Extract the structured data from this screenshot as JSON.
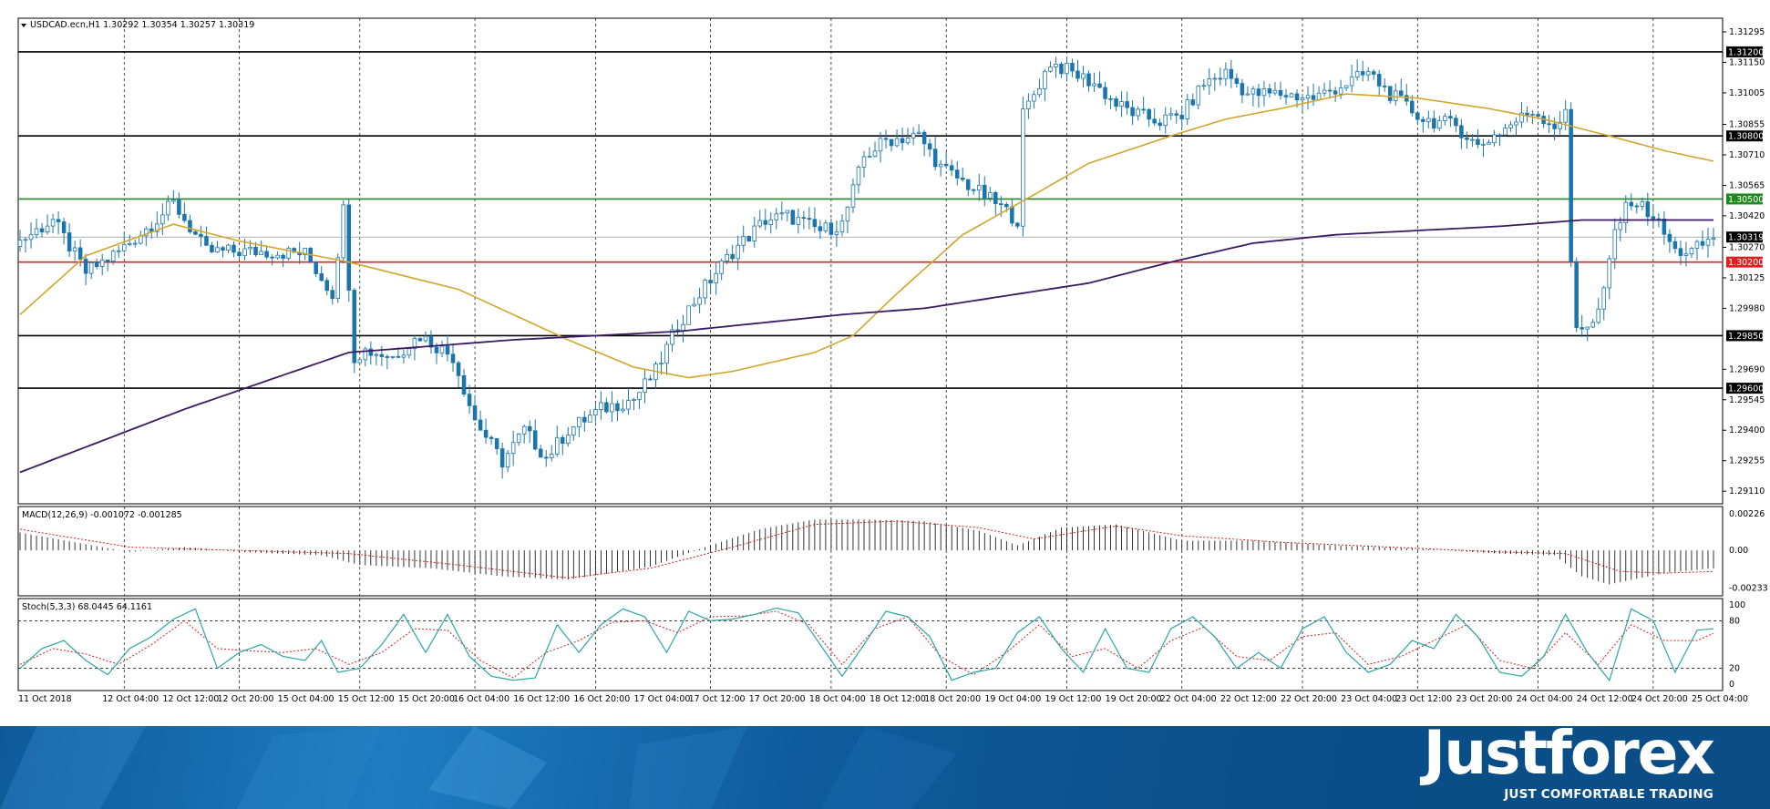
{
  "colors": {
    "up_candle": "#ffffff",
    "down_candle": "#1b75ad",
    "candle_border": "#1b75ad",
    "ma_fast": "#d4a52c",
    "ma_slow": "#3c1a63",
    "support_resistance": "#000000",
    "green_level": "#1f8a1f",
    "red_level": "#e02020",
    "bid_line": "#b0b0b0",
    "macd_hist": "#000000",
    "macd_signal": "#cc2020",
    "stoch_main": "#2ca6a4",
    "stoch_signal": "#cc2020",
    "banner_blue": "#0d5a99"
  },
  "chart_data": [
    {
      "type": "candlestick",
      "title": "USDCAD.ecn,H1  1.30292 1.30354 1.30257 1.30319",
      "ylim": [
        1.2905,
        1.3136
      ],
      "y_ticks": [
        "1.31295",
        "1.31150",
        "1.31005",
        "1.30855",
        "1.30710",
        "1.30565",
        "1.30420",
        "1.30270",
        "1.30125",
        "1.29980",
        "1.29690",
        "1.29545",
        "1.29400",
        "1.29255",
        "1.29110"
      ],
      "x_ticks": [
        "11 Oct 2018",
        "12 Oct 04:00",
        "12 Oct 12:00",
        "12 Oct 20:00",
        "15 Oct 04:00",
        "15 Oct 12:00",
        "15 Oct 20:00",
        "16 Oct 04:00",
        "16 Oct 12:00",
        "16 Oct 20:00",
        "17 Oct 04:00",
        "17 Oct 12:00",
        "17 Oct 20:00",
        "18 Oct 04:00",
        "18 Oct 12:00",
        "18 Oct 20:00",
        "19 Oct 04:00",
        "19 Oct 12:00",
        "19 Oct 20:00",
        "22 Oct 04:00",
        "22 Oct 12:00",
        "22 Oct 20:00",
        "23 Oct 04:00",
        "23 Oct 12:00",
        "23 Oct 20:00",
        "24 Oct 04:00",
        "24 Oct 12:00",
        "24 Oct 20:00",
        "25 Oct 04:00"
      ],
      "horizontal_levels": [
        {
          "label": "1.31200",
          "value": 1.312,
          "style": "black"
        },
        {
          "label": "1.30800",
          "value": 1.308,
          "style": "black"
        },
        {
          "label": "1.30500",
          "value": 1.305,
          "style": "green"
        },
        {
          "label": "1.30319",
          "value": 1.30319,
          "style": "bid"
        },
        {
          "label": "1.30200",
          "value": 1.302,
          "style": "red"
        },
        {
          "label": "1.29850",
          "value": 1.2985,
          "style": "black"
        },
        {
          "label": "1.29600",
          "value": 1.296,
          "style": "black"
        }
      ],
      "close_path": [
        [
          0,
          1.303
        ],
        [
          6,
          1.304
        ],
        [
          12,
          1.3015
        ],
        [
          18,
          1.3025
        ],
        [
          24,
          1.3038
        ],
        [
          28,
          1.3048
        ],
        [
          34,
          1.3025
        ],
        [
          44,
          1.3025
        ],
        [
          52,
          1.3024
        ],
        [
          57,
          1.3005
        ],
        [
          59,
          1.3045
        ],
        [
          61,
          1.2975
        ],
        [
          63,
          1.2978
        ],
        [
          68,
          1.2975
        ],
        [
          73,
          1.2985
        ],
        [
          79,
          1.2975
        ],
        [
          83,
          1.2945
        ],
        [
          88,
          1.2925
        ],
        [
          92,
          1.294
        ],
        [
          96,
          1.2927
        ],
        [
          100,
          1.294
        ],
        [
          106,
          1.295
        ],
        [
          112,
          1.2955
        ],
        [
          116,
          1.2968
        ],
        [
          120,
          1.299
        ],
        [
          124,
          1.3005
        ],
        [
          130,
          1.3025
        ],
        [
          136,
          1.304
        ],
        [
          140,
          1.3042
        ],
        [
          146,
          1.3035
        ],
        [
          150,
          1.3038
        ],
        [
          154,
          1.307
        ],
        [
          158,
          1.3078
        ],
        [
          164,
          1.308
        ],
        [
          168,
          1.3065
        ],
        [
          174,
          1.3055
        ],
        [
          178,
          1.3048
        ],
        [
          182,
          1.304
        ],
        [
          183,
          1.309
        ],
        [
          186,
          1.3105
        ],
        [
          188,
          1.3115
        ],
        [
          192,
          1.311
        ],
        [
          196,
          1.3105
        ],
        [
          200,
          1.3095
        ],
        [
          204,
          1.309
        ],
        [
          208,
          1.3087
        ],
        [
          212,
          1.309
        ],
        [
          216,
          1.3105
        ],
        [
          220,
          1.311
        ],
        [
          224,
          1.31
        ],
        [
          230,
          1.31
        ],
        [
          236,
          1.3098
        ],
        [
          242,
          1.3105
        ],
        [
          246,
          1.311
        ],
        [
          250,
          1.31
        ],
        [
          256,
          1.3088
        ],
        [
          262,
          1.3085
        ],
        [
          266,
          1.3075
        ],
        [
          270,
          1.3082
        ],
        [
          276,
          1.3092
        ],
        [
          280,
          1.3085
        ],
        [
          282,
          1.309
        ],
        [
          283,
          1.302
        ],
        [
          284,
          1.299
        ],
        [
          287,
          1.299
        ],
        [
          289,
          1.3005
        ],
        [
          291,
          1.3035
        ],
        [
          294,
          1.305
        ],
        [
          298,
          1.3042
        ],
        [
          302,
          1.3025
        ],
        [
          305,
          1.3025
        ],
        [
          308,
          1.303
        ],
        [
          309,
          1.3032
        ]
      ],
      "ma_fast_path": [
        [
          0,
          1.2995
        ],
        [
          12,
          1.3023
        ],
        [
          28,
          1.3038
        ],
        [
          40,
          1.303
        ],
        [
          60,
          1.302
        ],
        [
          80,
          1.3007
        ],
        [
          100,
          1.2983
        ],
        [
          112,
          1.297
        ],
        [
          122,
          1.2965
        ],
        [
          130,
          1.2968
        ],
        [
          145,
          1.2977
        ],
        [
          152,
          1.2985
        ],
        [
          160,
          1.3005
        ],
        [
          172,
          1.3033
        ],
        [
          185,
          1.3052
        ],
        [
          195,
          1.3067
        ],
        [
          210,
          1.308
        ],
        [
          220,
          1.3088
        ],
        [
          230,
          1.3093
        ],
        [
          242,
          1.31
        ],
        [
          255,
          1.3098
        ],
        [
          268,
          1.3093
        ],
        [
          278,
          1.3088
        ],
        [
          290,
          1.308
        ],
        [
          300,
          1.3073
        ],
        [
          309,
          1.3068
        ]
      ],
      "ma_slow_path": [
        [
          0,
          1.292
        ],
        [
          30,
          1.295
        ],
        [
          60,
          1.2977
        ],
        [
          90,
          1.2983
        ],
        [
          120,
          1.2987
        ],
        [
          150,
          1.2995
        ],
        [
          165,
          1.2998
        ],
        [
          180,
          1.3004
        ],
        [
          195,
          1.301
        ],
        [
          210,
          1.302
        ],
        [
          225,
          1.3029
        ],
        [
          240,
          1.3033
        ],
        [
          255,
          1.3035
        ],
        [
          270,
          1.3037
        ],
        [
          285,
          1.304
        ],
        [
          300,
          1.304
        ],
        [
          309,
          1.304
        ]
      ]
    },
    {
      "type": "bar",
      "title": "MACD(12,26,9) -0.001072 -0.001285",
      "y_ticks": [
        "0.00226",
        "0.00",
        "-0.00233"
      ],
      "ylim": [
        -0.0028,
        0.0027
      ],
      "hist_path": [
        [
          0,
          0.0011
        ],
        [
          10,
          0.0005
        ],
        [
          20,
          -0.0001
        ],
        [
          30,
          0.0002
        ],
        [
          40,
          -0.0001
        ],
        [
          55,
          -0.0003
        ],
        [
          62,
          -0.0009
        ],
        [
          75,
          -0.0011
        ],
        [
          88,
          -0.0016
        ],
        [
          100,
          -0.0018
        ],
        [
          115,
          -0.001
        ],
        [
          125,
          0.0002
        ],
        [
          135,
          0.0013
        ],
        [
          145,
          0.0019
        ],
        [
          155,
          0.0019
        ],
        [
          165,
          0.0018
        ],
        [
          175,
          0.0012
        ],
        [
          182,
          0.0003
        ],
        [
          190,
          0.0014
        ],
        [
          200,
          0.0016
        ],
        [
          212,
          0.0006
        ],
        [
          225,
          0.0006
        ],
        [
          240,
          0.0003
        ],
        [
          255,
          0.0001
        ],
        [
          270,
          -0.0002
        ],
        [
          280,
          -0.0003
        ],
        [
          285,
          -0.0016
        ],
        [
          290,
          -0.0021
        ],
        [
          300,
          -0.0014
        ],
        [
          309,
          -0.0011
        ]
      ],
      "signal_path": [
        [
          0,
          0.0013
        ],
        [
          20,
          0.0002
        ],
        [
          40,
          0.0
        ],
        [
          60,
          -0.0002
        ],
        [
          80,
          -0.0009
        ],
        [
          100,
          -0.0017
        ],
        [
          115,
          -0.0011
        ],
        [
          130,
          0.0002
        ],
        [
          145,
          0.0016
        ],
        [
          160,
          0.0018
        ],
        [
          175,
          0.0014
        ],
        [
          185,
          0.0007
        ],
        [
          200,
          0.0015
        ],
        [
          212,
          0.0009
        ],
        [
          230,
          0.0005
        ],
        [
          250,
          0.0002
        ],
        [
          270,
          -0.0001
        ],
        [
          282,
          -0.0002
        ],
        [
          292,
          -0.0013
        ],
        [
          300,
          -0.0014
        ],
        [
          309,
          -0.0013
        ]
      ]
    },
    {
      "type": "line",
      "title": "Stoch(5,3,3) 68.0445 64.1161",
      "y_ticks": [
        "100",
        "80",
        "20",
        "0"
      ],
      "ylim": [
        0,
        100
      ],
      "levels": [
        80,
        20
      ],
      "k_path": [
        [
          0,
          20
        ],
        [
          4,
          45
        ],
        [
          8,
          55
        ],
        [
          12,
          30
        ],
        [
          16,
          12
        ],
        [
          20,
          45
        ],
        [
          24,
          60
        ],
        [
          28,
          82
        ],
        [
          32,
          95
        ],
        [
          36,
          20
        ],
        [
          40,
          40
        ],
        [
          44,
          50
        ],
        [
          48,
          35
        ],
        [
          52,
          30
        ],
        [
          55,
          55
        ],
        [
          58,
          15
        ],
        [
          62,
          20
        ],
        [
          66,
          50
        ],
        [
          70,
          88
        ],
        [
          74,
          40
        ],
        [
          78,
          88
        ],
        [
          82,
          35
        ],
        [
          86,
          10
        ],
        [
          90,
          5
        ],
        [
          94,
          8
        ],
        [
          98,
          75
        ],
        [
          102,
          40
        ],
        [
          106,
          75
        ],
        [
          110,
          95
        ],
        [
          114,
          85
        ],
        [
          118,
          40
        ],
        [
          122,
          92
        ],
        [
          126,
          80
        ],
        [
          130,
          82
        ],
        [
          134,
          88
        ],
        [
          138,
          96
        ],
        [
          142,
          90
        ],
        [
          146,
          50
        ],
        [
          150,
          10
        ],
        [
          154,
          50
        ],
        [
          158,
          92
        ],
        [
          162,
          85
        ],
        [
          166,
          60
        ],
        [
          170,
          5
        ],
        [
          174,
          15
        ],
        [
          178,
          20
        ],
        [
          182,
          65
        ],
        [
          186,
          85
        ],
        [
          190,
          45
        ],
        [
          194,
          15
        ],
        [
          198,
          70
        ],
        [
          202,
          20
        ],
        [
          206,
          15
        ],
        [
          210,
          70
        ],
        [
          214,
          85
        ],
        [
          218,
          60
        ],
        [
          222,
          20
        ],
        [
          226,
          40
        ],
        [
          230,
          20
        ],
        [
          234,
          70
        ],
        [
          238,
          85
        ],
        [
          242,
          40
        ],
        [
          246,
          15
        ],
        [
          250,
          25
        ],
        [
          254,
          55
        ],
        [
          258,
          45
        ],
        [
          262,
          88
        ],
        [
          266,
          60
        ],
        [
          270,
          15
        ],
        [
          274,
          10
        ],
        [
          278,
          35
        ],
        [
          282,
          88
        ],
        [
          286,
          40
        ],
        [
          290,
          5
        ],
        [
          294,
          95
        ],
        [
          298,
          80
        ],
        [
          302,
          15
        ],
        [
          306,
          68
        ],
        [
          309,
          70
        ]
      ],
      "d_path": [
        [
          0,
          25
        ],
        [
          6,
          45
        ],
        [
          12,
          38
        ],
        [
          18,
          25
        ],
        [
          24,
          50
        ],
        [
          30,
          80
        ],
        [
          36,
          45
        ],
        [
          42,
          42
        ],
        [
          48,
          40
        ],
        [
          54,
          45
        ],
        [
          60,
          25
        ],
        [
          66,
          40
        ],
        [
          72,
          70
        ],
        [
          78,
          68
        ],
        [
          84,
          30
        ],
        [
          90,
          8
        ],
        [
          96,
          40
        ],
        [
          102,
          55
        ],
        [
          108,
          78
        ],
        [
          114,
          80
        ],
        [
          120,
          65
        ],
        [
          126,
          85
        ],
        [
          132,
          86
        ],
        [
          138,
          92
        ],
        [
          144,
          75
        ],
        [
          150,
          25
        ],
        [
          156,
          70
        ],
        [
          162,
          85
        ],
        [
          168,
          35
        ],
        [
          174,
          12
        ],
        [
          180,
          40
        ],
        [
          186,
          75
        ],
        [
          192,
          35
        ],
        [
          198,
          45
        ],
        [
          204,
          20
        ],
        [
          210,
          55
        ],
        [
          216,
          72
        ],
        [
          222,
          35
        ],
        [
          228,
          30
        ],
        [
          234,
          60
        ],
        [
          240,
          65
        ],
        [
          246,
          25
        ],
        [
          252,
          35
        ],
        [
          258,
          55
        ],
        [
          264,
          75
        ],
        [
          270,
          30
        ],
        [
          276,
          20
        ],
        [
          282,
          65
        ],
        [
          288,
          25
        ],
        [
          294,
          75
        ],
        [
          300,
          55
        ],
        [
          306,
          55
        ],
        [
          309,
          64
        ]
      ]
    }
  ],
  "banner": {
    "brand": "Justforex",
    "tagline": "JUST COMFORTABLE TRADING"
  }
}
